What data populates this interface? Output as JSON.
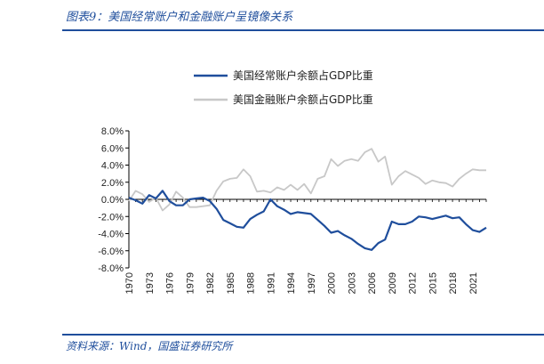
{
  "header": {
    "title": "图表9：美国经常账户和金融账户呈镜像关系"
  },
  "footer": {
    "source": "资料来源：Wind，国盛证券研究所"
  },
  "chart_data": {
    "type": "line",
    "title": "",
    "xlabel": "",
    "ylabel": "",
    "ylim": [
      -8.0,
      8.0
    ],
    "yticks": [
      "8.0%",
      "6.0%",
      "4.0%",
      "2.0%",
      "0.0%",
      "-2.0%",
      "-4.0%",
      "-6.0%",
      "-8.0%"
    ],
    "ytick_values": [
      8,
      6,
      4,
      2,
      0,
      -2,
      -4,
      -6,
      -8
    ],
    "xticks": [
      "1970",
      "1973",
      "1976",
      "1979",
      "1982",
      "1985",
      "1988",
      "1991",
      "1994",
      "1997",
      "2000",
      "2003",
      "2006",
      "2009",
      "2012",
      "2015",
      "2018",
      "2021"
    ],
    "legend_position": "top",
    "grid": false,
    "x": [
      1970,
      1971,
      1972,
      1973,
      1974,
      1975,
      1976,
      1977,
      1978,
      1979,
      1980,
      1981,
      1982,
      1983,
      1984,
      1985,
      1986,
      1987,
      1988,
      1989,
      1990,
      1991,
      1992,
      1993,
      1994,
      1995,
      1996,
      1997,
      1998,
      1999,
      2000,
      2001,
      2002,
      2003,
      2004,
      2005,
      2006,
      2007,
      2008,
      2009,
      2010,
      2011,
      2012,
      2013,
      2014,
      2015,
      2016,
      2017,
      2018,
      2019,
      2020,
      2021,
      2022,
      2023
    ],
    "series": [
      {
        "name": "美国经常账户余额占GDP比重",
        "color": "#1f4e9c",
        "values": [
          0.2,
          -0.1,
          -0.5,
          0.5,
          0.1,
          1.0,
          -0.2,
          -0.7,
          -0.7,
          0.0,
          0.1,
          0.2,
          -0.2,
          -1.1,
          -2.4,
          -2.8,
          -3.2,
          -3.3,
          -2.3,
          -1.8,
          -1.4,
          0.0,
          -0.8,
          -1.2,
          -1.7,
          -1.5,
          -1.6,
          -1.7,
          -2.4,
          -3.1,
          -3.9,
          -3.7,
          -4.2,
          -4.6,
          -5.2,
          -5.7,
          -5.9,
          -5.1,
          -4.7,
          -2.6,
          -2.9,
          -2.9,
          -2.6,
          -2.0,
          -2.1,
          -2.3,
          -2.1,
          -1.9,
          -2.2,
          -2.1,
          -2.9,
          -3.6,
          -3.8,
          -3.3
        ]
      },
      {
        "name": "美国金融账户余额占GDP比重",
        "color": "#c8c8c8",
        "values": [
          -0.2,
          1.0,
          0.6,
          -0.3,
          0.2,
          -1.3,
          -0.6,
          0.9,
          0.2,
          -0.9,
          -0.9,
          -0.8,
          -0.7,
          1.0,
          2.1,
          2.4,
          2.5,
          3.5,
          2.7,
          0.9,
          1.0,
          0.8,
          1.4,
          1.1,
          1.7,
          1.1,
          1.8,
          0.7,
          2.4,
          2.7,
          4.7,
          3.9,
          4.5,
          4.7,
          4.5,
          5.5,
          5.9,
          4.4,
          5.0,
          1.7,
          2.7,
          3.3,
          2.9,
          2.5,
          1.8,
          2.2,
          2.0,
          1.9,
          1.5,
          2.4,
          3.0,
          3.5,
          3.4,
          3.4
        ]
      }
    ]
  }
}
